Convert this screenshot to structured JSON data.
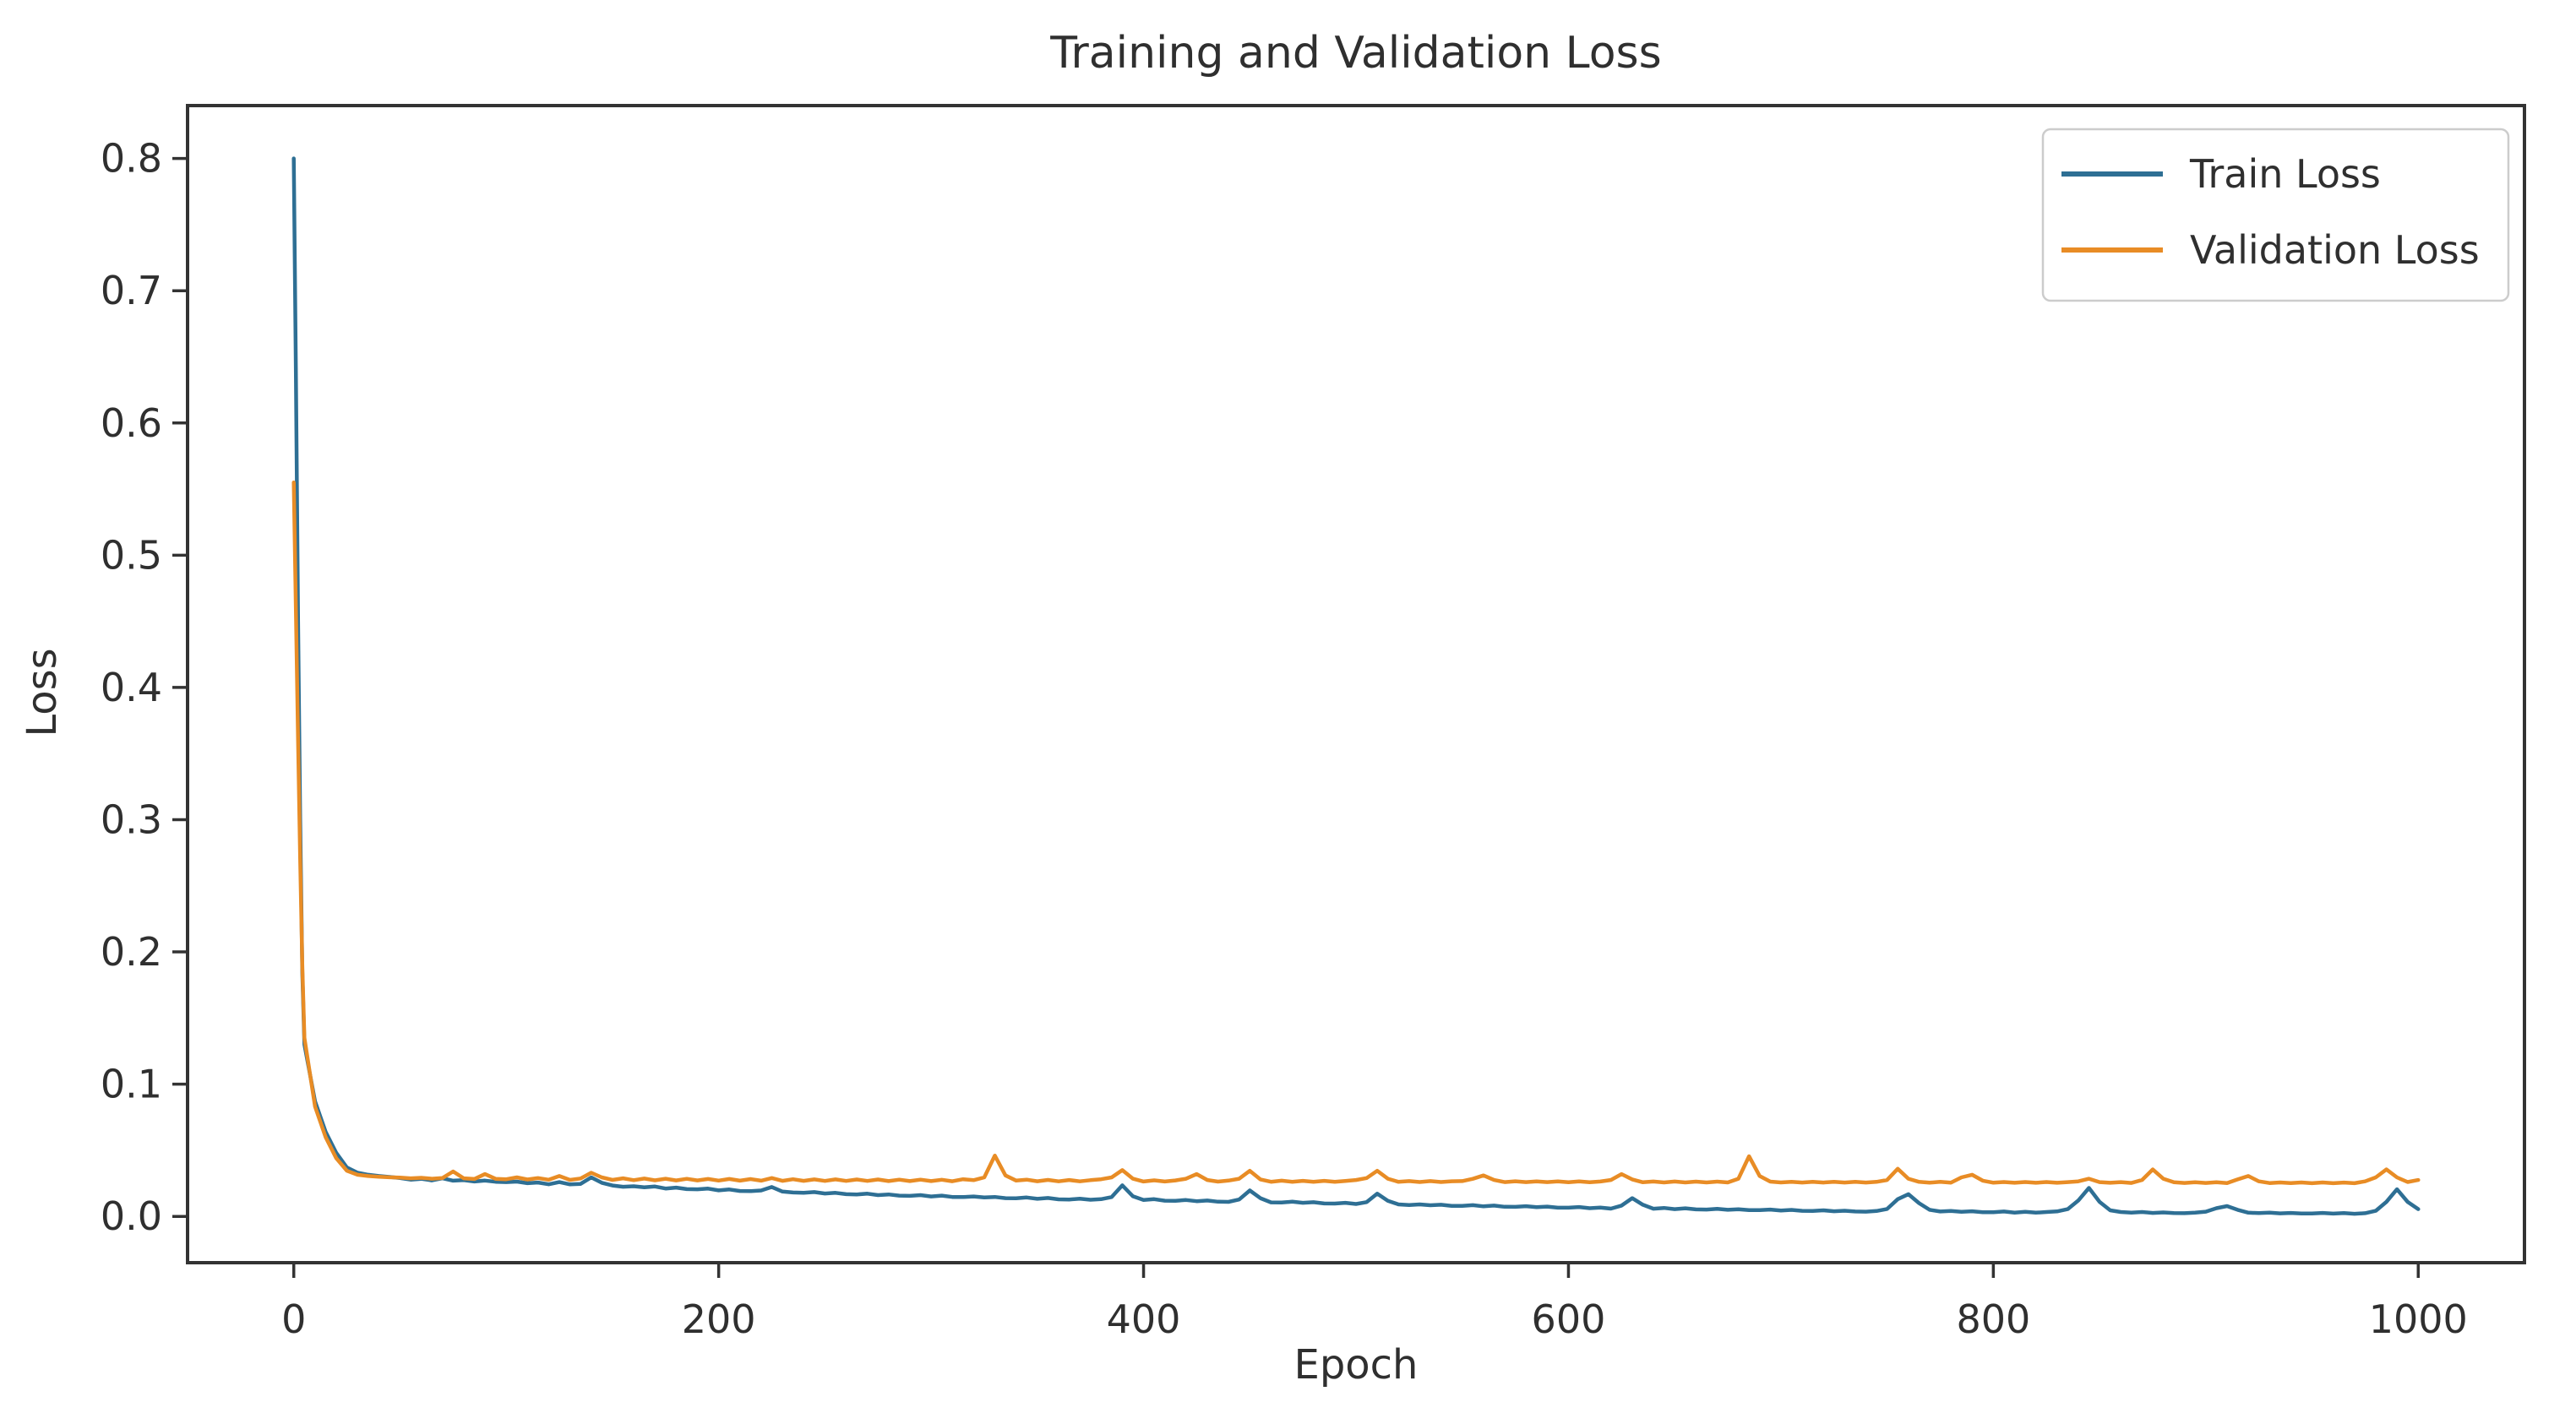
{
  "chart_data": {
    "type": "line",
    "title": "Training and Validation Loss",
    "xlabel": "Epoch",
    "ylabel": "Loss",
    "grid": false,
    "legend_position": "upper right",
    "xlim": [
      -50,
      1050
    ],
    "ylim": [
      -0.035,
      0.84
    ],
    "x_ticks": [
      0,
      200,
      400,
      600,
      800,
      1000
    ],
    "x_tick_labels": [
      "0",
      "200",
      "400",
      "600",
      "800",
      "1000"
    ],
    "y_ticks": [
      0.0,
      0.1,
      0.2,
      0.3,
      0.4,
      0.5,
      0.6,
      0.7,
      0.8
    ],
    "y_tick_labels": [
      "0.0",
      "0.1",
      "0.2",
      "0.3",
      "0.4",
      "0.5",
      "0.6",
      "0.7",
      "0.8"
    ],
    "colors": {
      "train": "#2e6f94",
      "validation": "#e88c25",
      "spine": "#333333",
      "text": "#2f2f2f",
      "legend_border": "#cccccc",
      "background": "#ffffff"
    },
    "x": [
      0,
      1,
      2,
      3,
      4,
      5,
      10,
      15,
      20,
      25,
      30,
      35,
      40,
      45,
      50,
      55,
      60,
      65,
      70,
      75,
      80,
      85,
      90,
      95,
      100,
      105,
      110,
      115,
      120,
      125,
      130,
      135,
      140,
      145,
      150,
      155,
      160,
      165,
      170,
      175,
      180,
      185,
      190,
      195,
      200,
      205,
      210,
      215,
      220,
      225,
      230,
      235,
      240,
      245,
      250,
      255,
      260,
      265,
      270,
      275,
      280,
      285,
      290,
      295,
      300,
      305,
      310,
      315,
      320,
      325,
      330,
      335,
      340,
      345,
      350,
      355,
      360,
      365,
      370,
      375,
      380,
      385,
      390,
      395,
      400,
      405,
      410,
      415,
      420,
      425,
      430,
      435,
      440,
      445,
      450,
      455,
      460,
      465,
      470,
      475,
      480,
      485,
      490,
      495,
      500,
      505,
      510,
      515,
      520,
      525,
      530,
      535,
      540,
      545,
      550,
      555,
      560,
      565,
      570,
      575,
      580,
      585,
      590,
      595,
      600,
      605,
      610,
      615,
      620,
      625,
      630,
      635,
      640,
      645,
      650,
      655,
      660,
      665,
      670,
      675,
      680,
      685,
      690,
      695,
      700,
      705,
      710,
      715,
      720,
      725,
      730,
      735,
      740,
      745,
      750,
      755,
      760,
      765,
      770,
      775,
      780,
      785,
      790,
      795,
      800,
      805,
      810,
      815,
      820,
      825,
      830,
      835,
      840,
      845,
      850,
      855,
      860,
      865,
      870,
      875,
      880,
      885,
      890,
      895,
      900,
      905,
      910,
      915,
      920,
      925,
      930,
      935,
      940,
      945,
      950,
      955,
      960,
      965,
      970,
      975,
      980,
      985,
      990,
      995,
      1000
    ],
    "series": [
      {
        "name": "Train Loss",
        "color_key": "train",
        "values": [
          0.8,
          0.64,
          0.45,
          0.3,
          0.185,
          0.13,
          0.087,
          0.064,
          0.048,
          0.037,
          0.033,
          0.0315,
          0.0305,
          0.0298,
          0.029,
          0.0278,
          0.0284,
          0.0272,
          0.0288,
          0.027,
          0.0274,
          0.0264,
          0.0271,
          0.0262,
          0.0259,
          0.0263,
          0.0251,
          0.0256,
          0.0243,
          0.0259,
          0.0242,
          0.0246,
          0.0295,
          0.0254,
          0.0234,
          0.0224,
          0.0228,
          0.022,
          0.0226,
          0.0211,
          0.0218,
          0.0206,
          0.0205,
          0.021,
          0.0197,
          0.0204,
          0.0192,
          0.0191,
          0.0196,
          0.0222,
          0.0188,
          0.0181,
          0.0178,
          0.0184,
          0.0173,
          0.0178,
          0.0168,
          0.0166,
          0.0172,
          0.0161,
          0.0166,
          0.0157,
          0.0155,
          0.0161,
          0.0151,
          0.0157,
          0.0147,
          0.0146,
          0.0151,
          0.0143,
          0.0147,
          0.0138,
          0.0137,
          0.0143,
          0.0133,
          0.0139,
          0.0129,
          0.0128,
          0.0134,
          0.0126,
          0.013,
          0.0146,
          0.0235,
          0.0152,
          0.0124,
          0.013,
          0.0119,
          0.0118,
          0.0124,
          0.0115,
          0.012,
          0.0111,
          0.011,
          0.0128,
          0.0196,
          0.0138,
          0.0106,
          0.0105,
          0.0111,
          0.0103,
          0.0107,
          0.0098,
          0.0097,
          0.0103,
          0.0094,
          0.0108,
          0.0172,
          0.0118,
          0.0091,
          0.0086,
          0.0091,
          0.0084,
          0.0088,
          0.008,
          0.008,
          0.0085,
          0.0076,
          0.0082,
          0.0073,
          0.0072,
          0.0077,
          0.007,
          0.0074,
          0.0066,
          0.0066,
          0.0071,
          0.0062,
          0.0067,
          0.0059,
          0.0082,
          0.0138,
          0.0088,
          0.0058,
          0.0064,
          0.0055,
          0.0061,
          0.0053,
          0.0052,
          0.0057,
          0.005,
          0.0054,
          0.0047,
          0.0047,
          0.0052,
          0.0044,
          0.0049,
          0.0042,
          0.0041,
          0.0046,
          0.0039,
          0.0043,
          0.0037,
          0.0036,
          0.0041,
          0.0056,
          0.013,
          0.0168,
          0.01,
          0.005,
          0.0037,
          0.0041,
          0.0035,
          0.0039,
          0.0032,
          0.0032,
          0.0037,
          0.0029,
          0.0035,
          0.0028,
          0.0033,
          0.0038,
          0.0055,
          0.012,
          0.0215,
          0.011,
          0.0046,
          0.0033,
          0.0029,
          0.0033,
          0.0026,
          0.003,
          0.0025,
          0.0024,
          0.0029,
          0.0036,
          0.0062,
          0.0078,
          0.005,
          0.0028,
          0.0025,
          0.0028,
          0.0023,
          0.0026,
          0.0022,
          0.0022,
          0.0026,
          0.0021,
          0.0025,
          0.002,
          0.0024,
          0.0042,
          0.011,
          0.0205,
          0.011,
          0.0055
        ]
      },
      {
        "name": "Validation Loss",
        "color_key": "validation",
        "values": [
          0.555,
          0.46,
          0.36,
          0.27,
          0.19,
          0.135,
          0.083,
          0.06,
          0.044,
          0.0345,
          0.0315,
          0.0305,
          0.03,
          0.0296,
          0.0293,
          0.0288,
          0.0292,
          0.0285,
          0.029,
          0.034,
          0.0288,
          0.0283,
          0.032,
          0.0284,
          0.0281,
          0.0295,
          0.0279,
          0.029,
          0.0277,
          0.0305,
          0.0276,
          0.0287,
          0.033,
          0.0295,
          0.0276,
          0.0288,
          0.0274,
          0.0286,
          0.0273,
          0.0285,
          0.0272,
          0.0284,
          0.0272,
          0.0283,
          0.0271,
          0.0283,
          0.027,
          0.0282,
          0.027,
          0.029,
          0.0269,
          0.0281,
          0.0269,
          0.028,
          0.0268,
          0.028,
          0.0268,
          0.0279,
          0.0268,
          0.0279,
          0.0267,
          0.0278,
          0.0267,
          0.0278,
          0.0267,
          0.0277,
          0.0266,
          0.0281,
          0.0274,
          0.0295,
          0.046,
          0.031,
          0.0271,
          0.0278,
          0.0266,
          0.0276,
          0.0265,
          0.0275,
          0.0265,
          0.0274,
          0.0281,
          0.0295,
          0.035,
          0.0285,
          0.0264,
          0.0273,
          0.0264,
          0.0272,
          0.0285,
          0.032,
          0.0275,
          0.0263,
          0.0271,
          0.0285,
          0.0345,
          0.028,
          0.0262,
          0.027,
          0.0262,
          0.0269,
          0.0261,
          0.0269,
          0.0261,
          0.0268,
          0.0275,
          0.029,
          0.0345,
          0.0285,
          0.0261,
          0.0267,
          0.026,
          0.0267,
          0.026,
          0.0266,
          0.0267,
          0.0284,
          0.031,
          0.0275,
          0.0259,
          0.0266,
          0.0259,
          0.0265,
          0.0259,
          0.0265,
          0.0258,
          0.0265,
          0.0258,
          0.0264,
          0.0275,
          0.032,
          0.028,
          0.0258,
          0.0264,
          0.0257,
          0.0264,
          0.0257,
          0.0263,
          0.0257,
          0.0263,
          0.0257,
          0.0285,
          0.0455,
          0.0305,
          0.0263,
          0.0257,
          0.0262,
          0.0256,
          0.0262,
          0.0256,
          0.0262,
          0.0256,
          0.0261,
          0.0256,
          0.0261,
          0.0275,
          0.036,
          0.0285,
          0.0261,
          0.0255,
          0.0261,
          0.0255,
          0.0295,
          0.0315,
          0.027,
          0.0255,
          0.026,
          0.0254,
          0.026,
          0.0254,
          0.026,
          0.0254,
          0.0259,
          0.0265,
          0.0285,
          0.0259,
          0.0254,
          0.0259,
          0.0253,
          0.0275,
          0.0355,
          0.0285,
          0.0258,
          0.0253,
          0.0258,
          0.0253,
          0.0258,
          0.0252,
          0.028,
          0.0305,
          0.0265,
          0.0252,
          0.0257,
          0.0252,
          0.0257,
          0.0251,
          0.0257,
          0.0251,
          0.0256,
          0.0251,
          0.0265,
          0.0295,
          0.0355,
          0.0295,
          0.026,
          0.0275
        ]
      }
    ]
  }
}
